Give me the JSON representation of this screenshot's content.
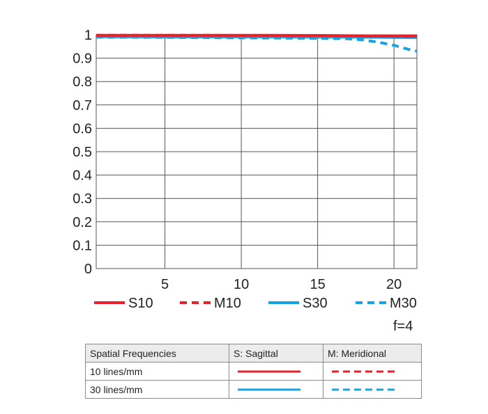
{
  "chart_data": {
    "type": "line",
    "xlim": [
      0.5,
      21.5
    ],
    "ylim": [
      0,
      1
    ],
    "x_ticks": [
      "5",
      "10",
      "15",
      "20"
    ],
    "y_ticks": [
      "0",
      "0.1",
      "0.2",
      "0.3",
      "0.4",
      "0.5",
      "0.6",
      "0.7",
      "0.8",
      "0.9",
      "1"
    ],
    "grid": true,
    "legend_position": "bottom",
    "series": [
      {
        "name": "S10",
        "color": "#e8202a",
        "style": "solid",
        "x": [
          0.5,
          5,
          10,
          15,
          20,
          21.5
        ],
        "y": [
          0.998,
          0.998,
          0.998,
          0.997,
          0.995,
          0.995
        ]
      },
      {
        "name": "M10",
        "color": "#e8202a",
        "style": "dashed",
        "x": [
          0.5,
          5,
          10,
          15,
          20,
          21.5
        ],
        "y": [
          0.998,
          0.998,
          0.997,
          0.996,
          0.994,
          0.993
        ]
      },
      {
        "name": "S30",
        "color": "#17a2e3",
        "style": "solid",
        "x": [
          0.5,
          5,
          10,
          15,
          18,
          20,
          21.5
        ],
        "y": [
          0.992,
          0.991,
          0.991,
          0.99,
          0.99,
          0.989,
          0.988
        ]
      },
      {
        "name": "M30",
        "color": "#17a2e3",
        "style": "dashed",
        "x": [
          0.5,
          5,
          10,
          15,
          17,
          18,
          19,
          20,
          21,
          21.5
        ],
        "y": [
          0.99,
          0.989,
          0.987,
          0.985,
          0.983,
          0.978,
          0.968,
          0.955,
          0.937,
          0.93
        ]
      }
    ]
  },
  "aperture_label": "f=4",
  "table": {
    "headers": [
      "Spatial Frequencies",
      "S: Sagittal",
      "M: Meridional"
    ],
    "rows": [
      {
        "label": "10 lines/mm",
        "color": "#e8202a"
      },
      {
        "label": "30 lines/mm",
        "color": "#17a2e3"
      }
    ]
  }
}
